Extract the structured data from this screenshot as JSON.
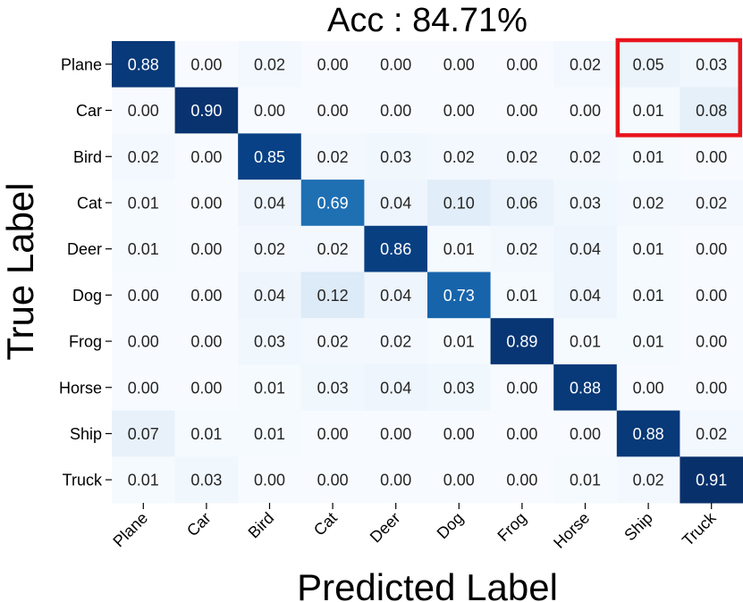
{
  "chart_data": {
    "type": "heatmap",
    "title": "Acc : 84.71%",
    "xlabel": "Predicted Label",
    "ylabel": "True Label",
    "x_categories": [
      "Plane",
      "Car",
      "Bird",
      "Cat",
      "Deer",
      "Dog",
      "Frog",
      "Horse",
      "Ship",
      "Truck"
    ],
    "y_categories": [
      "Plane",
      "Car",
      "Bird",
      "Cat",
      "Deer",
      "Dog",
      "Frog",
      "Horse",
      "Ship",
      "Truck"
    ],
    "values": [
      [
        0.88,
        0.0,
        0.02,
        0.0,
        0.0,
        0.0,
        0.0,
        0.02,
        0.05,
        0.03
      ],
      [
        0.0,
        0.9,
        0.0,
        0.0,
        0.0,
        0.0,
        0.0,
        0.0,
        0.01,
        0.08
      ],
      [
        0.02,
        0.0,
        0.85,
        0.02,
        0.03,
        0.02,
        0.02,
        0.02,
        0.01,
        0.0
      ],
      [
        0.01,
        0.0,
        0.04,
        0.69,
        0.04,
        0.1,
        0.06,
        0.03,
        0.02,
        0.02
      ],
      [
        0.01,
        0.0,
        0.02,
        0.02,
        0.86,
        0.01,
        0.02,
        0.04,
        0.01,
        0.0
      ],
      [
        0.0,
        0.0,
        0.04,
        0.12,
        0.04,
        0.73,
        0.01,
        0.04,
        0.01,
        0.0
      ],
      [
        0.0,
        0.0,
        0.03,
        0.02,
        0.02,
        0.01,
        0.89,
        0.01,
        0.01,
        0.0
      ],
      [
        0.0,
        0.0,
        0.01,
        0.03,
        0.04,
        0.03,
        0.0,
        0.88,
        0.0,
        0.0
      ],
      [
        0.07,
        0.01,
        0.01,
        0.0,
        0.0,
        0.0,
        0.0,
        0.0,
        0.88,
        0.02
      ],
      [
        0.01,
        0.03,
        0.0,
        0.0,
        0.0,
        0.0,
        0.0,
        0.01,
        0.02,
        0.91
      ]
    ],
    "value_format": "0.00",
    "colormap": "Blues",
    "value_range": [
      0,
      0.91
    ],
    "highlight": {
      "rows": [
        "Plane",
        "Car"
      ],
      "columns": [
        "Ship",
        "Truck"
      ],
      "color": "#e8141c"
    },
    "grid": false,
    "legend": "none"
  }
}
